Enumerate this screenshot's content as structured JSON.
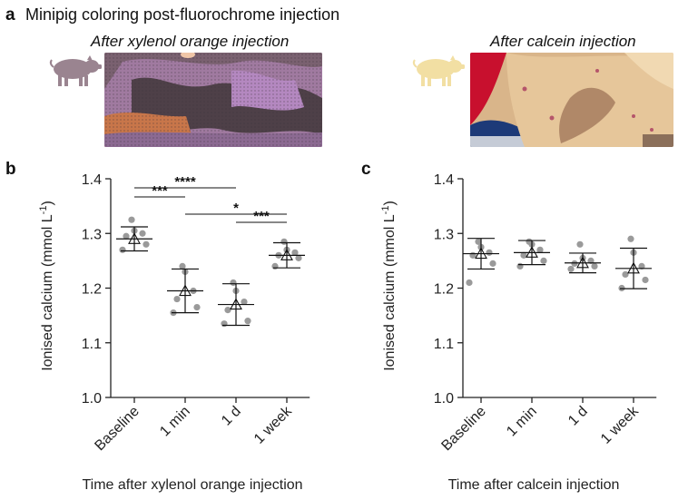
{
  "panel_a": {
    "letter": "a",
    "heading": "Minipig coloring post-fluorochrome injection",
    "left_caption": "After xylenol orange injection",
    "right_caption": "After calcein injection",
    "left_pig_color": "#9a8490",
    "right_pig_color": "#f2dfa3"
  },
  "chart_data": [
    {
      "panel_letter": "b",
      "type": "scatter",
      "xlabel": "Time after xylenol orange injection",
      "ylabel": "Ionised calcium (mmol L",
      "ylabel_sup": "-1",
      "ylabel_close": ")",
      "ylim": [
        1.0,
        1.4
      ],
      "yticks": [
        "1.0",
        "1.1",
        "1.2",
        "1.3",
        "1.4"
      ],
      "categories": [
        "Baseline",
        "1 min",
        "1 d",
        "1 week"
      ],
      "mean": [
        1.29,
        1.195,
        1.17,
        1.26
      ],
      "sd": [
        0.022,
        0.04,
        0.038,
        0.023
      ],
      "points": [
        [
          1.27,
          1.28,
          1.295,
          1.3,
          1.305,
          1.325
        ],
        [
          1.155,
          1.165,
          1.18,
          1.195,
          1.23,
          1.24
        ],
        [
          1.135,
          1.14,
          1.16,
          1.175,
          1.195,
          1.21
        ],
        [
          1.24,
          1.255,
          1.26,
          1.265,
          1.27,
          1.285
        ]
      ],
      "comparisons": [
        {
          "from": 0,
          "to": 1,
          "label": "***"
        },
        {
          "from": 0,
          "to": 2,
          "label": "****"
        },
        {
          "from": 1,
          "to": 3,
          "label": "*"
        },
        {
          "from": 2,
          "to": 3,
          "label": "***"
        }
      ]
    },
    {
      "panel_letter": "c",
      "type": "scatter",
      "xlabel": "Time after calcein injection",
      "ylabel": "Ionised calcium (mmol L",
      "ylabel_sup": "-1",
      "ylabel_close": ")",
      "ylim": [
        1.0,
        1.4
      ],
      "yticks": [
        "1.0",
        "1.1",
        "1.2",
        "1.3",
        "1.4"
      ],
      "categories": [
        "Baseline",
        "1 min",
        "1 d",
        "1 week"
      ],
      "mean": [
        1.263,
        1.265,
        1.246,
        1.236
      ],
      "sd": [
        0.028,
        0.022,
        0.018,
        0.037
      ],
      "points": [
        [
          1.21,
          1.245,
          1.26,
          1.265,
          1.275,
          1.285
        ],
        [
          1.24,
          1.25,
          1.26,
          1.27,
          1.28,
          1.285
        ],
        [
          1.235,
          1.24,
          1.245,
          1.25,
          1.255,
          1.28
        ],
        [
          1.2,
          1.215,
          1.225,
          1.24,
          1.265,
          1.29
        ]
      ],
      "comparisons": []
    }
  ],
  "colors": {
    "points": "#9a9a9a",
    "axis": "#222222"
  }
}
